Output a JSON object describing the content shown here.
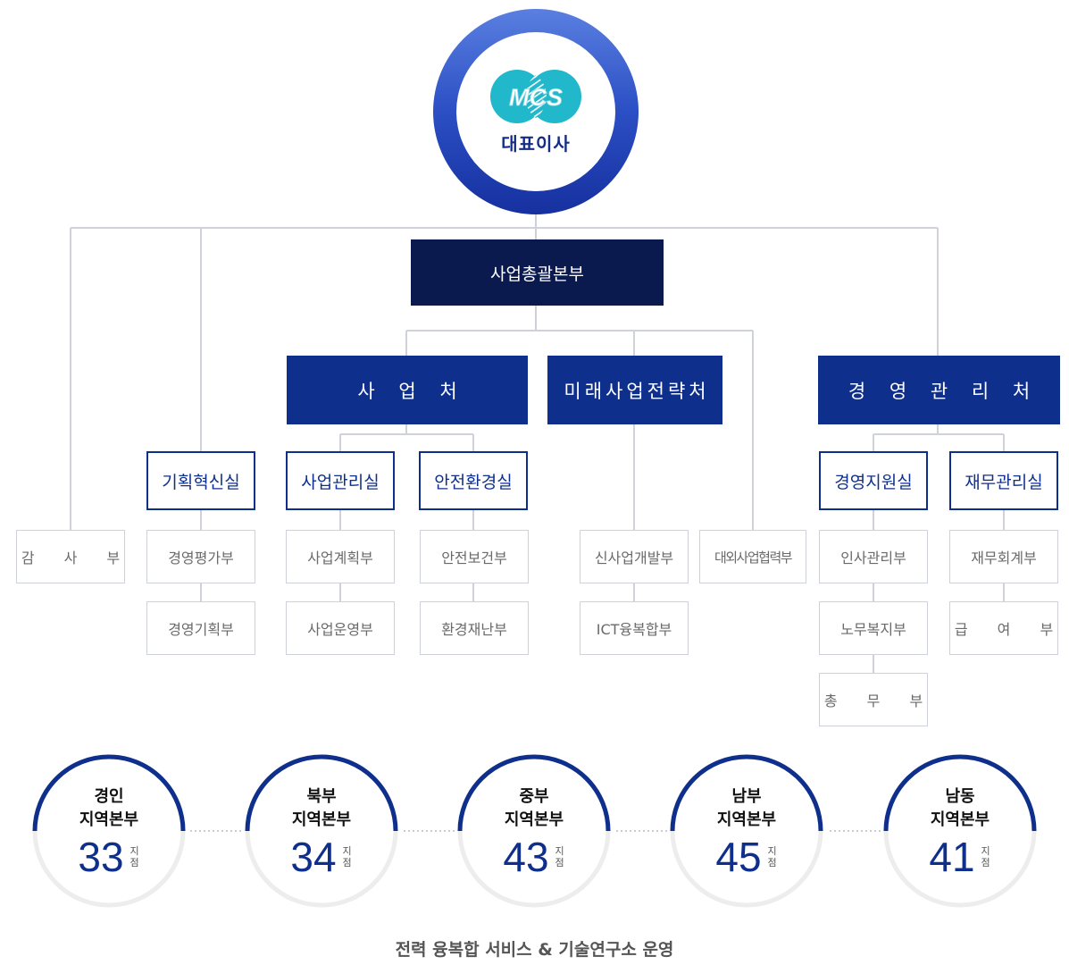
{
  "ceo": {
    "logo_text": "MCS",
    "title": "대표이사"
  },
  "hq": "사업총괄본부",
  "divisions": {
    "business": "사 업 처",
    "future": "미래사업전략처",
    "management": "경 영 관 리 처"
  },
  "offices": {
    "planning_innovation": "기획혁신실",
    "business_mgmt": "사업관리실",
    "safety_env": "안전환경실",
    "mgmt_support": "경영지원실",
    "finance_mgmt": "재무관리실"
  },
  "departments": {
    "audit": "감 사 부",
    "mgmt_eval": "경영평가부",
    "mgmt_planning": "경영기획부",
    "biz_planning": "사업계획부",
    "biz_operation": "사업운영부",
    "safety_health": "안전보건부",
    "env_disaster": "환경재난부",
    "new_biz": "신사업개발부",
    "ict": "ICT융복합부",
    "external_coop": "대외사업협력부",
    "hr": "인사관리부",
    "labor_welfare": "노무복지부",
    "general_affairs": "총 무 부",
    "accounting": "재무회계부",
    "payroll": "급 여 부"
  },
  "regions": [
    {
      "line1": "경인",
      "line2": "지역본부",
      "count": "33",
      "unit1": "지",
      "unit2": "점"
    },
    {
      "line1": "북부",
      "line2": "지역본부",
      "count": "34",
      "unit1": "지",
      "unit2": "점"
    },
    {
      "line1": "중부",
      "line2": "지역본부",
      "count": "43",
      "unit1": "지",
      "unit2": "점"
    },
    {
      "line1": "남부",
      "line2": "지역본부",
      "count": "45",
      "unit1": "지",
      "unit2": "점"
    },
    {
      "line1": "남동",
      "line2": "지역본부",
      "count": "41",
      "unit1": "지",
      "unit2": "점"
    }
  ],
  "footer": "전력 융복합 서비스 & 기술연구소 운영",
  "colors": {
    "navy": "#0b1a4e",
    "blue": "#0f2f8c",
    "ring": "#2b4fc4",
    "logo": "#22b8cc",
    "line": "#cfd2d8"
  }
}
